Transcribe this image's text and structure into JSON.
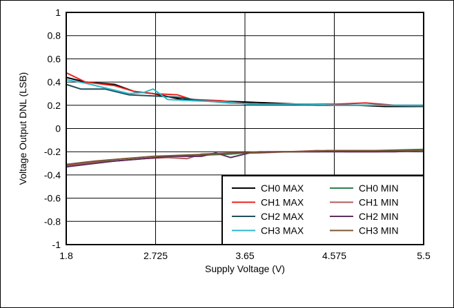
{
  "chart_data": {
    "type": "line",
    "title": "",
    "xlabel": "Supply Voltage (V)",
    "ylabel": "Voltage Output DNL (LSB)",
    "xlim": [
      1.8,
      5.5
    ],
    "ylim": [
      -1,
      1
    ],
    "grid": true,
    "legend_position": "bottom-right",
    "x_ticks": [
      "1.8",
      "2.725",
      "3.65",
      "4.575",
      "5.5"
    ],
    "y_ticks": [
      "-1",
      "-0.8",
      "-0.6",
      "-0.4",
      "-0.2",
      "0",
      "0.2",
      "0.4",
      "0.6",
      "0.8",
      "1"
    ],
    "series": [
      {
        "name": "CH0 MAX",
        "color": "#000000",
        "points": [
          [
            1.8,
            0.44
          ],
          [
            2.0,
            0.4
          ],
          [
            2.3,
            0.38
          ],
          [
            2.5,
            0.32
          ],
          [
            2.7,
            0.3
          ],
          [
            3.0,
            0.25
          ],
          [
            3.3,
            0.24
          ],
          [
            3.6,
            0.23
          ],
          [
            3.9,
            0.22
          ],
          [
            4.2,
            0.21
          ],
          [
            4.5,
            0.2
          ],
          [
            4.8,
            0.2
          ],
          [
            5.1,
            0.19
          ],
          [
            5.5,
            0.19
          ]
        ]
      },
      {
        "name": "CH1 MAX",
        "color": "#e8211d",
        "points": [
          [
            1.8,
            0.48
          ],
          [
            2.0,
            0.4
          ],
          [
            2.3,
            0.37
          ],
          [
            2.5,
            0.32
          ],
          [
            2.7,
            0.3
          ],
          [
            2.95,
            0.29
          ],
          [
            3.1,
            0.25
          ],
          [
            3.4,
            0.24
          ],
          [
            3.7,
            0.21
          ],
          [
            4.0,
            0.21
          ],
          [
            4.3,
            0.21
          ],
          [
            4.6,
            0.21
          ],
          [
            4.9,
            0.22
          ],
          [
            5.2,
            0.2
          ],
          [
            5.5,
            0.2
          ]
        ]
      },
      {
        "name": "CH2 MAX",
        "color": "#1f4e5a",
        "points": [
          [
            1.8,
            0.38
          ],
          [
            1.95,
            0.34
          ],
          [
            2.2,
            0.34
          ],
          [
            2.45,
            0.29
          ],
          [
            2.7,
            0.28
          ],
          [
            2.95,
            0.27
          ],
          [
            3.2,
            0.24
          ],
          [
            3.5,
            0.22
          ],
          [
            3.8,
            0.21
          ],
          [
            4.1,
            0.21
          ],
          [
            4.4,
            0.2
          ],
          [
            4.7,
            0.2
          ],
          [
            5.0,
            0.2
          ],
          [
            5.5,
            0.19
          ]
        ]
      },
      {
        "name": "CH3 MAX",
        "color": "#2ab7ca",
        "points": [
          [
            1.8,
            0.42
          ],
          [
            2.0,
            0.39
          ],
          [
            2.2,
            0.35
          ],
          [
            2.45,
            0.3
          ],
          [
            2.6,
            0.31
          ],
          [
            2.7,
            0.34
          ],
          [
            2.85,
            0.25
          ],
          [
            3.1,
            0.24
          ],
          [
            3.4,
            0.23
          ],
          [
            3.7,
            0.21
          ],
          [
            4.0,
            0.21
          ],
          [
            4.3,
            0.21
          ],
          [
            4.6,
            0.2
          ],
          [
            4.9,
            0.2
          ],
          [
            5.2,
            0.2
          ],
          [
            5.5,
            0.2
          ]
        ]
      },
      {
        "name": "CH0 MIN",
        "color": "#2e7d4f",
        "points": [
          [
            1.8,
            -0.31
          ],
          [
            2.0,
            -0.29
          ],
          [
            2.3,
            -0.28
          ],
          [
            2.6,
            -0.26
          ],
          [
            2.9,
            -0.24
          ],
          [
            3.2,
            -0.23
          ],
          [
            3.5,
            -0.22
          ],
          [
            3.8,
            -0.2
          ],
          [
            4.1,
            -0.2
          ],
          [
            4.4,
            -0.2
          ],
          [
            4.7,
            -0.19
          ],
          [
            5.0,
            -0.19
          ],
          [
            5.5,
            -0.18
          ]
        ]
      },
      {
        "name": "CH1 MIN",
        "color": "#b35a5a",
        "points": [
          [
            1.8,
            -0.32
          ],
          [
            2.0,
            -0.3
          ],
          [
            2.3,
            -0.28
          ],
          [
            2.6,
            -0.26
          ],
          [
            2.85,
            -0.25
          ],
          [
            3.05,
            -0.26
          ],
          [
            3.2,
            -0.22
          ],
          [
            3.5,
            -0.21
          ],
          [
            3.8,
            -0.21
          ],
          [
            4.1,
            -0.2
          ],
          [
            4.4,
            -0.19
          ],
          [
            4.7,
            -0.2
          ],
          [
            5.0,
            -0.2
          ],
          [
            5.5,
            -0.19
          ]
        ]
      },
      {
        "name": "CH2 MIN",
        "color": "#5c2d5c",
        "points": [
          [
            1.8,
            -0.33
          ],
          [
            2.0,
            -0.31
          ],
          [
            2.3,
            -0.28
          ],
          [
            2.6,
            -0.26
          ],
          [
            2.9,
            -0.24
          ],
          [
            3.2,
            -0.24
          ],
          [
            3.35,
            -0.21
          ],
          [
            3.5,
            -0.25
          ],
          [
            3.7,
            -0.21
          ],
          [
            4.0,
            -0.2
          ],
          [
            4.3,
            -0.2
          ],
          [
            4.6,
            -0.2
          ],
          [
            4.9,
            -0.2
          ],
          [
            5.2,
            -0.2
          ],
          [
            5.5,
            -0.19
          ]
        ]
      },
      {
        "name": "CH3 MIN",
        "color": "#7a5530",
        "points": [
          [
            1.8,
            -0.31
          ],
          [
            2.1,
            -0.28
          ],
          [
            2.4,
            -0.26
          ],
          [
            2.7,
            -0.24
          ],
          [
            3.0,
            -0.23
          ],
          [
            3.3,
            -0.22
          ],
          [
            3.6,
            -0.21
          ],
          [
            3.9,
            -0.2
          ],
          [
            4.2,
            -0.2
          ],
          [
            4.5,
            -0.19
          ],
          [
            4.8,
            -0.19
          ],
          [
            5.1,
            -0.19
          ],
          [
            5.5,
            -0.19
          ]
        ]
      }
    ]
  }
}
